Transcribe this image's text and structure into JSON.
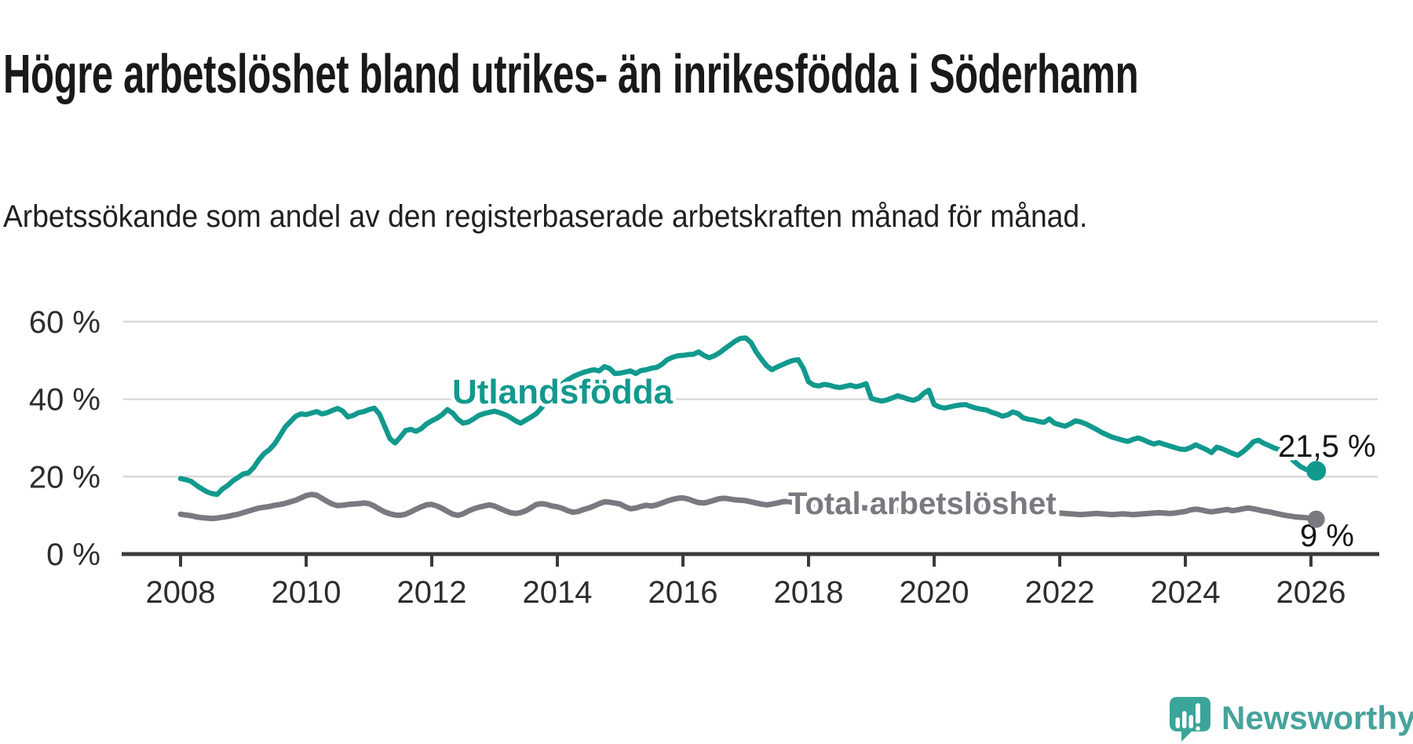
{
  "header": {
    "title": "Högre arbetslöshet bland utrikes- än inrikesfödda i Söderhamn",
    "subtitle": "Arbetssökande som andel av den registerbaserade arbetskraften månad för månad."
  },
  "footer": {
    "brand_name": "Newsworthy",
    "logo_icon": "speech-bubble-bar-chart-icon"
  },
  "colors": {
    "foreign_born_line": "#12998e",
    "total_line": "#7a7980",
    "axis": "#3b3b3b",
    "gridline": "#dadada",
    "title_text": "#191919",
    "end_label_text": "#141414",
    "logo_teal": "#46a39b",
    "background": "#ffffff"
  },
  "chart_data": {
    "type": "line",
    "frequency": "monthly",
    "start": {
      "year": 2008,
      "month": 1
    },
    "end": {
      "year": 2026,
      "month": 2
    },
    "unit": "%",
    "ylim": [
      0,
      65
    ],
    "grid": "horizontal",
    "legend_position": "inline-labels",
    "y_ticks": [
      {
        "value": 0,
        "label": "0 %"
      },
      {
        "value": 20,
        "label": "20 %"
      },
      {
        "value": 40,
        "label": "40 %"
      },
      {
        "value": 60,
        "label": "60 %"
      }
    ],
    "x_ticks": [
      {
        "year": 2008,
        "label": "2008"
      },
      {
        "year": 2010,
        "label": "2010"
      },
      {
        "year": 2012,
        "label": "2012"
      },
      {
        "year": 2014,
        "label": "2014"
      },
      {
        "year": 2016,
        "label": "2016"
      },
      {
        "year": 2018,
        "label": "2018"
      },
      {
        "year": 2020,
        "label": "2020"
      },
      {
        "year": 2022,
        "label": "2022"
      },
      {
        "year": 2024,
        "label": "2024"
      },
      {
        "year": 2026,
        "label": "2026"
      }
    ],
    "series": [
      {
        "name": "Utlandsfödda",
        "color": "#12998e",
        "end_label": "21,5 %",
        "last_value": 21.5,
        "values": [
          19.5,
          19.2,
          18.8,
          17.8,
          16.9,
          16.1,
          15.6,
          15.4,
          16.8,
          17.7,
          18.9,
          19.8,
          20.7,
          21.0,
          22.4,
          24.4,
          26.0,
          27.0,
          28.5,
          30.6,
          32.8,
          34.2,
          35.6,
          36.2,
          36.0,
          36.4,
          36.8,
          36.2,
          36.5,
          37.1,
          37.6,
          36.9,
          35.4,
          35.8,
          36.5,
          36.8,
          37.3,
          37.7,
          36.2,
          33.0,
          29.8,
          28.7,
          30.2,
          31.9,
          32.2,
          31.7,
          32.4,
          33.6,
          34.4,
          35.1,
          36.0,
          37.3,
          36.4,
          34.8,
          33.8,
          34.1,
          34.9,
          35.8,
          36.3,
          36.6,
          36.9,
          36.5,
          36.0,
          35.3,
          34.4,
          33.8,
          34.6,
          35.4,
          36.3,
          37.8,
          39.6,
          41.4,
          42.8,
          44.0,
          45.0,
          45.8,
          46.4,
          46.9,
          47.3,
          47.6,
          47.3,
          48.4,
          47.9,
          46.6,
          46.7,
          47.0,
          47.3,
          46.6,
          47.4,
          47.6,
          48.0,
          48.2,
          49.0,
          50.2,
          50.8,
          51.2,
          51.3,
          51.5,
          51.6,
          52.2,
          51.3,
          50.7,
          51.2,
          52.0,
          53.0,
          54.0,
          55.0,
          55.7,
          55.8,
          54.6,
          52.2,
          50.3,
          48.6,
          47.6,
          48.3,
          48.9,
          49.5,
          50.0,
          50.2,
          48.0,
          44.5,
          43.6,
          43.4,
          43.8,
          43.6,
          43.2,
          43.0,
          43.3,
          43.6,
          43.2,
          43.5,
          44.0,
          40.2,
          39.8,
          39.5,
          39.8,
          40.3,
          40.9,
          40.5,
          40.0,
          39.7,
          40.2,
          41.5,
          42.3,
          38.6,
          38.0,
          37.7,
          38.0,
          38.3,
          38.5,
          38.6,
          38.1,
          37.7,
          37.4,
          37.2,
          36.6,
          36.2,
          35.6,
          35.9,
          36.7,
          36.3,
          35.2,
          34.8,
          34.6,
          34.2,
          34.0,
          34.9,
          33.8,
          33.4,
          33.0,
          33.6,
          34.4,
          34.1,
          33.6,
          32.9,
          32.2,
          31.4,
          30.8,
          30.2,
          29.8,
          29.4,
          29.1,
          29.6,
          30.0,
          29.5,
          28.9,
          28.4,
          28.8,
          28.3,
          27.9,
          27.5,
          27.1,
          27.0,
          27.5,
          28.2,
          27.6,
          27.0,
          26.2,
          27.6,
          27.2,
          26.6,
          26.0,
          25.5,
          26.4,
          27.6,
          29.0,
          29.4,
          28.6,
          28.0,
          27.4,
          26.9,
          26.4,
          25.0,
          23.7,
          22.6,
          21.9,
          21.6,
          21.5
        ]
      },
      {
        "name": "Total arbetslöshet",
        "color": "#7a7980",
        "end_label": "9 %",
        "last_value": 9,
        "values": [
          10.3,
          10.1,
          9.9,
          9.6,
          9.4,
          9.3,
          9.2,
          9.3,
          9.5,
          9.7,
          10.0,
          10.3,
          10.7,
          11.1,
          11.5,
          11.9,
          12.1,
          12.3,
          12.6,
          12.8,
          13.1,
          13.5,
          13.9,
          14.5,
          15.1,
          15.4,
          15.2,
          14.4,
          13.6,
          12.9,
          12.5,
          12.6,
          12.8,
          12.9,
          13.0,
          13.2,
          13.0,
          12.4,
          11.6,
          10.9,
          10.4,
          10.1,
          10.0,
          10.3,
          10.9,
          11.6,
          12.2,
          12.7,
          12.8,
          12.4,
          11.8,
          11.0,
          10.3,
          10.0,
          10.4,
          11.1,
          11.7,
          12.1,
          12.4,
          12.7,
          12.4,
          11.8,
          11.2,
          10.7,
          10.5,
          10.7,
          11.2,
          12.0,
          12.8,
          13.0,
          12.8,
          12.4,
          12.2,
          11.8,
          11.2,
          10.8,
          11.0,
          11.5,
          11.9,
          12.4,
          13.0,
          13.5,
          13.4,
          13.2,
          12.9,
          12.2,
          11.7,
          11.9,
          12.3,
          12.6,
          12.4,
          12.7,
          13.2,
          13.7,
          14.1,
          14.4,
          14.5,
          14.2,
          13.7,
          13.3,
          13.2,
          13.5,
          13.9,
          14.3,
          14.4,
          14.2,
          14.0,
          13.9,
          13.8,
          13.5,
          13.2,
          12.9,
          12.7,
          12.9,
          13.2,
          13.5,
          13.6,
          13.4,
          13.1,
          12.9,
          12.7,
          12.4,
          12.1,
          11.8,
          11.6,
          11.8,
          12.1,
          12.3,
          12.4,
          12.2,
          12.0,
          11.9,
          11.8,
          11.6,
          11.4,
          11.2,
          11.1,
          11.3,
          11.6,
          11.8,
          11.7,
          11.5,
          11.4,
          11.5,
          11.7,
          11.9,
          12.3,
          12.7,
          13.0,
          13.1,
          13.0,
          12.8,
          12.6,
          12.4,
          12.2,
          12.1,
          12.0,
          11.9,
          11.7,
          11.5,
          11.3,
          11.2,
          11.1,
          11.0,
          10.9,
          10.8,
          10.7,
          10.7,
          10.6,
          10.5,
          10.4,
          10.3,
          10.2,
          10.3,
          10.4,
          10.5,
          10.4,
          10.3,
          10.2,
          10.3,
          10.4,
          10.3,
          10.2,
          10.3,
          10.4,
          10.5,
          10.6,
          10.7,
          10.6,
          10.5,
          10.6,
          10.8,
          11.0,
          11.4,
          11.6,
          11.4,
          11.1,
          10.9,
          11.1,
          11.3,
          11.5,
          11.2,
          11.4,
          11.7,
          11.9,
          11.7,
          11.4,
          11.1,
          10.9,
          10.6,
          10.3,
          10.0,
          9.8,
          9.6,
          9.5,
          9.4,
          9.2,
          9.0
        ]
      }
    ]
  }
}
